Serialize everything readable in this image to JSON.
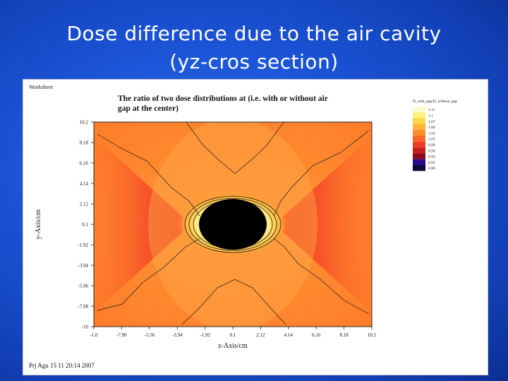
{
  "slide": {
    "title_line1": "Dose difference due to the air cavity",
    "title_line2": "(yz-cros section)"
  },
  "worksheet": {
    "label": "Worksheet",
    "footer": "Prj Agu 15 11 20:14 2007"
  },
  "colors": {
    "slide_background": "#1c55d8",
    "title_text": "#ffffff",
    "cavity": "#000000",
    "contour_lines": "#1a1a1a"
  },
  "chart_data": {
    "type": "heatmap",
    "title_line1": "The ratio of two dose distributions at (i.e. with or without air",
    "title_line2": "gap at the center)",
    "xlabel": "z-Axis/cm",
    "ylabel": "y-Axis/cm",
    "xlim": [
      -10,
      10.2
    ],
    "ylim": [
      -10,
      10.2
    ],
    "x_ticks": [
      "-1.0",
      "-7.90",
      "-5.56",
      "-3.94",
      "-1.92",
      "0.1",
      "2.12",
      "4.14",
      "6.16",
      "8.18",
      "10.2"
    ],
    "y_ticks": [
      "10.2",
      "8.18",
      "6.16",
      "4.14",
      "2.12",
      "0.1",
      "-1.92",
      "-3.94",
      "-5.96",
      "-7.98",
      "-10"
    ],
    "legend": {
      "title": "D_with_gap/D_without_gap",
      "placement": "right",
      "levels": [
        {
          "label": "1.11",
          "color": "#fffbd0"
        },
        {
          "label": "1.1",
          "color": "#fff37a"
        },
        {
          "label": "1.07",
          "color": "#ffd84a"
        },
        {
          "label": "1.06",
          "color": "#ffb33b"
        },
        {
          "label": "1.03",
          "color": "#ff8c2e"
        },
        {
          "label": "1.01",
          "color": "#ff6428"
        },
        {
          "label": "0.99",
          "color": "#f03a25"
        },
        {
          "label": "0.94",
          "color": "#c81e1e"
        },
        {
          "label": "0.93",
          "color": "#8a0a1a"
        },
        {
          "label": "0.91",
          "color": "#2a0a8a"
        },
        {
          "label": "0.88",
          "color": "#0a0a3a"
        }
      ]
    }
  }
}
